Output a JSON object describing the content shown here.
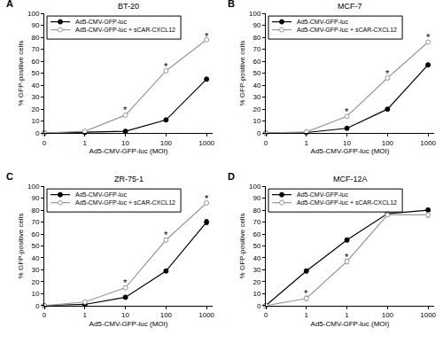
{
  "chart_data": [
    {
      "type": "line",
      "panel_label": "A",
      "title": "BT-20",
      "x_label": "Ad5-CMV-GFP-luc (MOI)",
      "y_label": "% GFP-positive cells",
      "categories": [
        "0",
        "1",
        "10",
        "100",
        "1000"
      ],
      "ylim": [
        0,
        100
      ],
      "yticks": [
        0,
        10,
        20,
        30,
        40,
        50,
        60,
        70,
        80,
        90,
        100
      ],
      "legend": "upper left",
      "series": [
        {
          "name": "Ad5-CMV-GFP-luc",
          "color": "#000000",
          "marker": "filled_circle",
          "values": [
            0,
            0.5,
            1.5,
            11,
            45
          ],
          "errors": [
            0,
            0.3,
            0.4,
            0.8,
            1.5
          ]
        },
        {
          "name": "Ad5-CMV-GFP-luc + sCAR-CXCL12",
          "color": "#999999",
          "marker": "open_circle",
          "values": [
            0,
            1.5,
            15,
            52,
            78
          ],
          "errors": [
            0,
            0.3,
            0.8,
            1,
            1
          ]
        }
      ],
      "annotations": [
        {
          "text": "*",
          "x": 2,
          "y": 19
        },
        {
          "text": "*",
          "x": 3,
          "y": 56
        },
        {
          "text": "*",
          "x": 4,
          "y": 81
        }
      ]
    },
    {
      "type": "line",
      "panel_label": "B",
      "title": "MCF-7",
      "x_label": "Ad5-CMV-GFP-luc (MOI)",
      "y_label": "% GFP-positive cells",
      "categories": [
        "0",
        "1",
        "10",
        "100",
        "1000"
      ],
      "ylim": [
        0,
        100
      ],
      "yticks": [
        0,
        10,
        20,
        30,
        40,
        50,
        60,
        70,
        80,
        90,
        100
      ],
      "legend": "upper left",
      "series": [
        {
          "name": "Ad5-CMV-GFP-luc",
          "color": "#000000",
          "marker": "filled_circle",
          "values": [
            0,
            0.5,
            4,
            20,
            57
          ],
          "errors": [
            0,
            0.2,
            0.4,
            1,
            1.2
          ]
        },
        {
          "name": "Ad5-CMV-GFP-luc + sCAR-CXCL12",
          "color": "#999999",
          "marker": "open_circle",
          "values": [
            0,
            1,
            14,
            46,
            76
          ],
          "errors": [
            0,
            0.2,
            1,
            1.2,
            0.8
          ]
        }
      ],
      "annotations": [
        {
          "text": "*",
          "x": 2,
          "y": 18
        },
        {
          "text": "*",
          "x": 3,
          "y": 50
        },
        {
          "text": "*",
          "x": 4,
          "y": 80
        }
      ]
    },
    {
      "type": "line",
      "panel_label": "C",
      "title": "ZR-75-1",
      "x_label": "Ad5-CMV-GFP-luc (MOI)",
      "y_label": "% GFP-positive cells",
      "categories": [
        "0",
        "1",
        "10",
        "100",
        "1000"
      ],
      "ylim": [
        0,
        100
      ],
      "yticks": [
        0,
        10,
        20,
        30,
        40,
        50,
        60,
        70,
        80,
        90,
        100
      ],
      "legend": "upper left",
      "series": [
        {
          "name": "Ad5-CMV-GFP-luc",
          "color": "#000000",
          "marker": "filled_circle",
          "values": [
            0,
            1,
            7,
            29,
            70
          ],
          "errors": [
            0,
            0.3,
            0.5,
            1,
            2
          ]
        },
        {
          "name": "Ad5-CMV-GFP-luc + sCAR-CXCL12",
          "color": "#999999",
          "marker": "open_circle",
          "values": [
            0,
            3,
            15,
            55,
            86
          ],
          "errors": [
            0,
            0.5,
            1,
            1.5,
            1
          ]
        }
      ],
      "annotations": [
        {
          "text": "*",
          "x": 2,
          "y": 19
        },
        {
          "text": "*",
          "x": 3,
          "y": 59
        },
        {
          "text": "*",
          "x": 4,
          "y": 90
        }
      ]
    },
    {
      "type": "line",
      "panel_label": "D",
      "title": "MCF-12A",
      "x_label": "Ad5-CMV-GFP-luc (MOI)",
      "y_label": "% GFP-positive cells",
      "categories": [
        "0",
        "1",
        "1",
        "100",
        "1000"
      ],
      "ylim": [
        0,
        100
      ],
      "yticks": [
        0,
        10,
        20,
        30,
        40,
        50,
        60,
        70,
        80,
        90,
        100
      ],
      "legend": "upper left",
      "series": [
        {
          "name": "Ad5-CMV-GFP-luc",
          "color": "#000000",
          "marker": "filled_circle",
          "values": [
            0,
            29,
            55,
            77,
            80
          ],
          "errors": [
            0,
            1.5,
            1.5,
            1,
            1.5
          ]
        },
        {
          "name": "Ad5-CMV-GFP-luc + sCAR-CXCL12",
          "color": "#999999",
          "marker": "open_circle",
          "values": [
            0,
            6,
            37,
            76,
            76
          ],
          "errors": [
            0,
            2,
            2,
            1,
            2
          ]
        }
      ],
      "annotations": [
        {
          "text": "*",
          "x": 1,
          "y": 10
        },
        {
          "text": "*",
          "x": 2,
          "y": 41
        }
      ]
    }
  ]
}
